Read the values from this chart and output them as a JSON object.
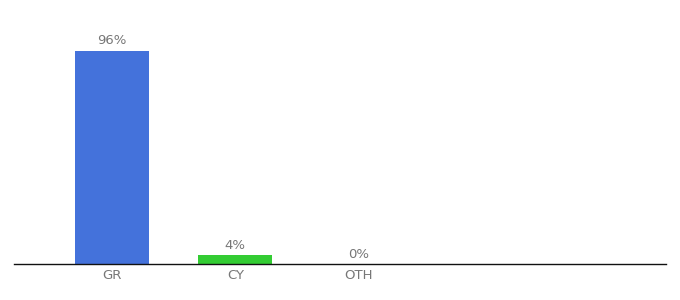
{
  "categories": [
    "GR",
    "CY",
    "OTH"
  ],
  "values": [
    96,
    4,
    0
  ],
  "bar_colors": [
    "#4472db",
    "#33cc33",
    "#cccccc"
  ],
  "labels": [
    "96%",
    "4%",
    "0%"
  ],
  "ylim": [
    0,
    108
  ],
  "background_color": "#ffffff",
  "bar_width": 0.6,
  "label_fontsize": 9.5,
  "tick_fontsize": 9.5,
  "tick_color": "#777777",
  "label_color": "#777777"
}
